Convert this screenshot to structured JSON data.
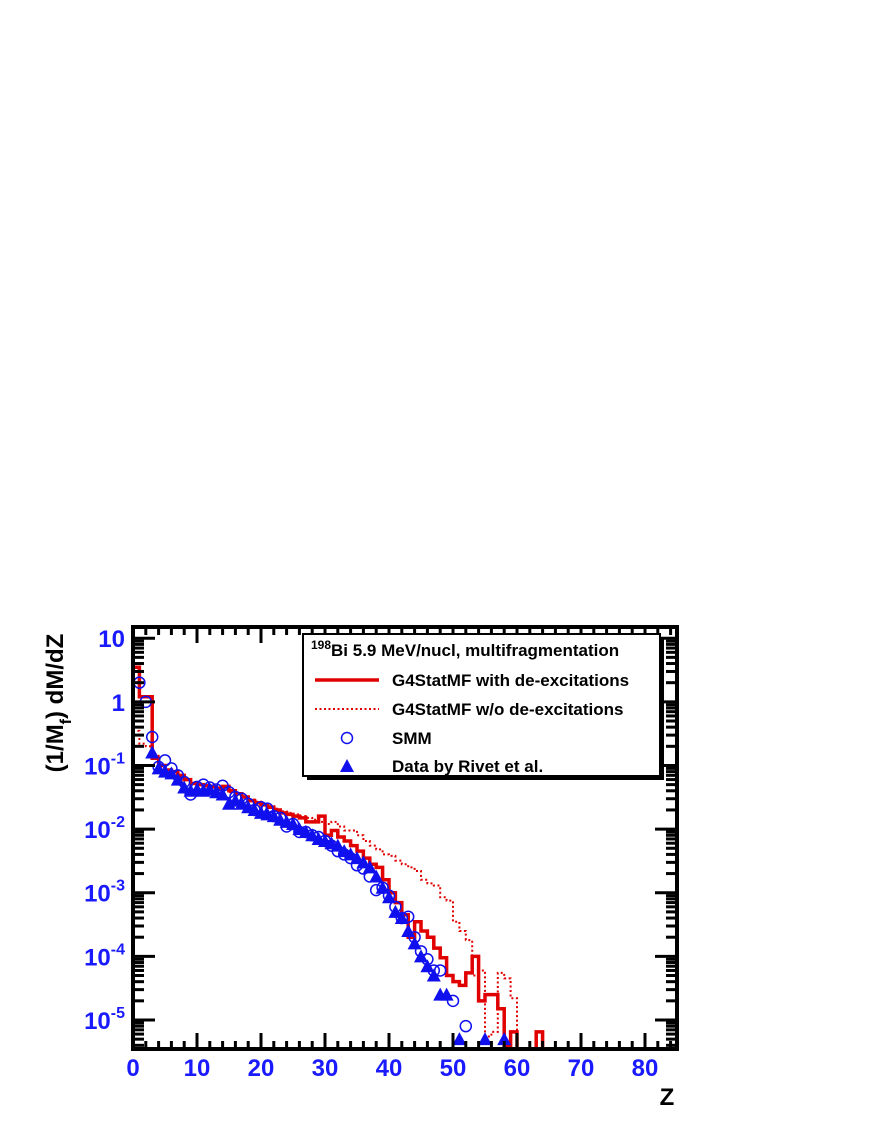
{
  "chart_data": {
    "type": "line",
    "title": "",
    "legend_header": {
      "superscript": "198",
      "text": "Bi 5.9 MeV/nucl, multifragmentation"
    },
    "xlabel": "Z",
    "ylabel": {
      "prefix": "(1/M",
      "subscript": "f",
      "suffix": ") dM/dZ"
    },
    "xlim": [
      0,
      85
    ],
    "ylim": [
      3.5e-06,
      15
    ],
    "yscale": "log",
    "grid": false,
    "legend_position": "top-right",
    "x_tick_labels": [
      "0",
      "10",
      "20",
      "30",
      "40",
      "50",
      "60",
      "70",
      "80"
    ],
    "y_tick_labels": [
      {
        "value": 10,
        "base": "10",
        "exp": ""
      },
      {
        "value": 1,
        "base": "1",
        "exp": ""
      },
      {
        "value": 0.1,
        "base": "10",
        "exp": "-1"
      },
      {
        "value": 0.01,
        "base": "10",
        "exp": "-2"
      },
      {
        "value": 0.001,
        "base": "10",
        "exp": "-3"
      },
      {
        "value": 0.0001,
        "base": "10",
        "exp": "-4"
      },
      {
        "value": 1e-05,
        "base": "10",
        "exp": "-5"
      }
    ],
    "colors": {
      "axis_labels": "#1a1aff",
      "red": "#e00000",
      "blue": "#1010ee"
    },
    "series": [
      {
        "name": "G4StatMF with de-excitations",
        "style": "solid-step",
        "color": "#e00000",
        "bin_edges": [
          0,
          1,
          2,
          3,
          4,
          5,
          6,
          7,
          8,
          9,
          10,
          11,
          12,
          13,
          14,
          15,
          16,
          17,
          18,
          19,
          20,
          21,
          22,
          23,
          24,
          25,
          26,
          27,
          28,
          29,
          30,
          31,
          32,
          33,
          34,
          35,
          36,
          37,
          38,
          39,
          40,
          41,
          42,
          43,
          44,
          45,
          46,
          47,
          48,
          49,
          50,
          51,
          52,
          53,
          54,
          55,
          56,
          57,
          58,
          59,
          60,
          61,
          62,
          63,
          64,
          65,
          66,
          67,
          68,
          69,
          70,
          71,
          72,
          73,
          74,
          75,
          76,
          77,
          78,
          79,
          80,
          81,
          82,
          83,
          84,
          85
        ],
        "values": [
          3.5,
          1.2,
          1.2,
          0.13,
          0.1,
          0.085,
          0.08,
          0.07,
          0.06,
          0.052,
          0.05,
          0.048,
          0.046,
          0.044,
          0.047,
          0.04,
          0.036,
          0.032,
          0.028,
          0.026,
          0.024,
          0.022,
          0.02,
          0.018,
          0.017,
          0.016,
          0.015,
          0.013,
          0.013,
          0.016,
          0.008,
          0.0095,
          0.0075,
          0.0065,
          0.0055,
          0.0045,
          0.0035,
          0.0028,
          0.0025,
          0.0016,
          0.001,
          0.0007,
          0.00045,
          0.0002,
          0.00035,
          0.00025,
          0.0002,
          0.000135,
          9.5e-05,
          5e-05,
          4e-05,
          3.5e-05,
          5.5e-05,
          0.0001,
          2e-05,
          2.5e-05,
          2.5e-05,
          1.5e-05,
          4e-06,
          6.5e-06,
          3.5e-06,
          3.5e-06,
          3.5e-06,
          6.5e-06,
          3.5e-06,
          3.5e-06,
          3.5e-06,
          3.5e-06,
          3.5e-06,
          3.5e-06,
          3.5e-06,
          3.5e-06,
          3.5e-06,
          3.5e-06,
          3.5e-06,
          3.5e-06,
          3.5e-06,
          3.5e-06,
          3.5e-06,
          3.5e-06,
          3.5e-06,
          3.5e-06,
          3.5e-06,
          3.5e-06,
          3.5e-06
        ]
      },
      {
        "name": "G4StatMF w/o de-excitations",
        "style": "dotted-step",
        "color": "#e00000",
        "bin_edges": [
          0,
          1,
          2,
          3,
          4,
          5,
          6,
          7,
          8,
          9,
          10,
          11,
          12,
          13,
          14,
          15,
          16,
          17,
          18,
          19,
          20,
          21,
          22,
          23,
          24,
          25,
          26,
          27,
          28,
          29,
          30,
          31,
          32,
          33,
          34,
          35,
          36,
          37,
          38,
          39,
          40,
          41,
          42,
          43,
          44,
          45,
          46,
          47,
          48,
          49,
          50,
          51,
          52,
          53,
          54,
          55,
          56,
          57,
          58,
          59,
          60,
          61,
          62,
          63,
          64,
          65,
          66,
          67,
          68,
          69,
          70,
          71,
          72,
          73,
          74,
          75,
          76,
          77,
          78,
          79,
          80,
          81,
          82,
          83,
          84,
          85
        ],
        "values": [
          0.35,
          0.22,
          0.2,
          0.15,
          0.1,
          0.08,
          0.07,
          0.065,
          0.06,
          0.055,
          0.05,
          0.048,
          0.045,
          0.043,
          0.041,
          0.038,
          0.035,
          0.032,
          0.029,
          0.027,
          0.025,
          0.023,
          0.021,
          0.019,
          0.018,
          0.017,
          0.016,
          0.015,
          0.014,
          0.013,
          0.012,
          0.013,
          0.011,
          0.0095,
          0.0095,
          0.008,
          0.0065,
          0.0055,
          0.0048,
          0.004,
          0.0038,
          0.0032,
          0.0028,
          0.0025,
          0.0022,
          0.0016,
          0.0014,
          0.0013,
          0.00085,
          0.00075,
          0.00035,
          0.00025,
          0.00018,
          5e-05,
          6e-05,
          5.5e-06,
          6.5e-06,
          5.5e-05,
          4.5e-05,
          2.2e-05,
          3.5e-06,
          3.5e-06,
          3.5e-06,
          3.5e-06,
          3.5e-06,
          3.5e-06,
          3.5e-06,
          3.5e-06,
          3.5e-06,
          3.5e-06,
          3.5e-06,
          3.5e-06,
          3.5e-06,
          3.5e-06,
          3.5e-06,
          3.5e-06,
          3.5e-06,
          3.5e-06,
          3.5e-06,
          3.5e-06,
          3.5e-06,
          3.5e-06,
          3.5e-06,
          3.5e-06,
          3.5e-06
        ]
      },
      {
        "name": "SMM",
        "style": "open-circle",
        "color": "#1010ee",
        "x": [
          1,
          2,
          3,
          4,
          5,
          6,
          7,
          8,
          9,
          10,
          11,
          12,
          13,
          14,
          15,
          16,
          17,
          18,
          19,
          20,
          21,
          22,
          23,
          24,
          25,
          26,
          27,
          28,
          29,
          30,
          31,
          32,
          33,
          34,
          35,
          36,
          37,
          38,
          39,
          40,
          41,
          42,
          43,
          44,
          45,
          46,
          47,
          48,
          50,
          52
        ],
        "y": [
          2.0,
          1.0,
          0.28,
          0.095,
          0.12,
          0.09,
          0.07,
          0.055,
          0.035,
          0.046,
          0.05,
          0.045,
          0.042,
          0.048,
          0.038,
          0.032,
          0.03,
          0.025,
          0.02,
          0.022,
          0.021,
          0.016,
          0.015,
          0.011,
          0.012,
          0.009,
          0.009,
          0.008,
          0.0075,
          0.0065,
          0.0055,
          0.0045,
          0.004,
          0.0035,
          0.0027,
          0.0024,
          0.0018,
          0.0011,
          0.0012,
          0.0009,
          0.0006,
          0.0004,
          0.00042,
          0.0002,
          0.00012,
          9e-05,
          6e-05,
          6e-05,
          2e-05,
          8e-06
        ]
      },
      {
        "name": "Data by Rivet et al.",
        "style": "filled-triangle",
        "color": "#1010ee",
        "x": [
          3,
          4,
          5,
          6,
          7,
          8,
          9,
          10,
          11,
          12,
          13,
          14,
          15,
          16,
          17,
          18,
          19,
          20,
          21,
          22,
          23,
          24,
          25,
          26,
          27,
          28,
          29,
          30,
          31,
          32,
          33,
          34,
          35,
          36,
          37,
          38,
          39,
          40,
          41,
          42,
          43,
          44,
          45,
          46,
          47,
          48,
          49,
          51,
          55,
          58
        ],
        "y": [
          0.16,
          0.09,
          0.08,
          0.075,
          0.06,
          0.045,
          0.04,
          0.042,
          0.04,
          0.042,
          0.038,
          0.035,
          0.025,
          0.028,
          0.025,
          0.022,
          0.02,
          0.018,
          0.017,
          0.016,
          0.014,
          0.013,
          0.012,
          0.01,
          0.009,
          0.008,
          0.007,
          0.0065,
          0.006,
          0.0055,
          0.0045,
          0.004,
          0.0035,
          0.003,
          0.0025,
          0.0018,
          0.0012,
          0.00085,
          0.0005,
          0.0004,
          0.00025,
          0.00016,
          0.0001,
          7e-05,
          5e-05,
          2.5e-05,
          2.5e-05,
          5e-06,
          5e-06,
          5e-06
        ]
      }
    ]
  }
}
